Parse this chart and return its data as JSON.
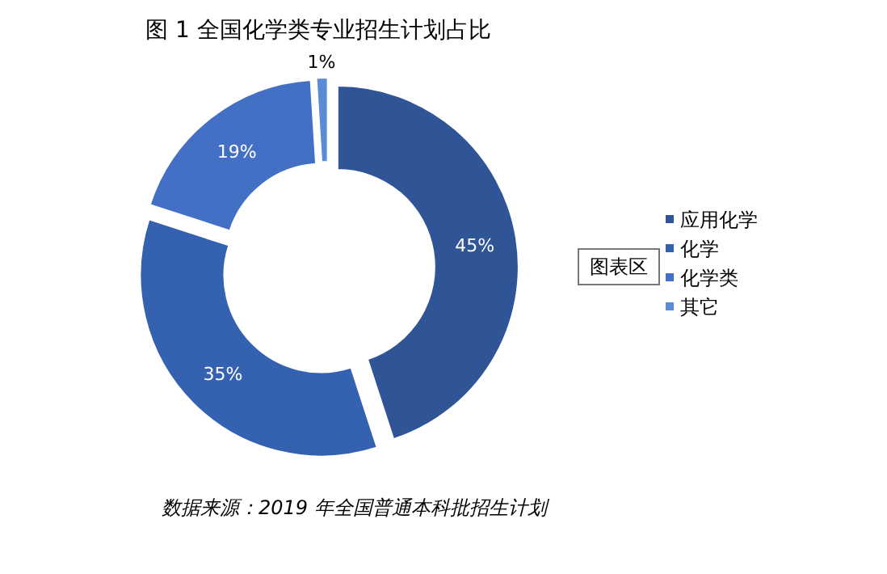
{
  "chart_data": {
    "type": "donut",
    "title": "图 1  全国化学类专业招生计划占比",
    "categories": [
      "应用化学",
      "化学",
      "化学类",
      "其它"
    ],
    "values": [
      45,
      35,
      19,
      1
    ],
    "value_labels": [
      "45%",
      "35%",
      "19%",
      "1%"
    ],
    "colors": [
      "#2f5597",
      "#3461b0",
      "#4370c4",
      "#5b8bd6"
    ],
    "legend": "right",
    "annotations": [
      "图表区",
      "数据来源：2019 年全国普通本科批招生计划"
    ]
  }
}
